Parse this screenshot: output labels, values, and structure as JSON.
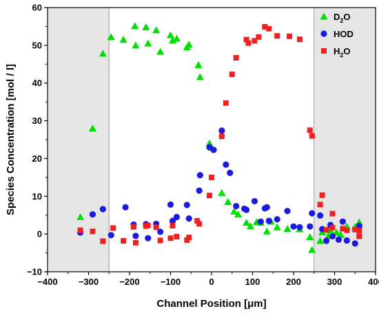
{
  "chart_data": {
    "type": "scatter",
    "xlabel": "Channel Position [μm]",
    "ylabel": "Species Concentration [mol / l]",
    "xlim": [
      -400,
      400
    ],
    "ylim": [
      -10,
      60
    ],
    "x_ticks": [
      -400,
      -300,
      -200,
      -100,
      0,
      100,
      200,
      300,
      400
    ],
    "y_ticks": [
      -10,
      0,
      10,
      20,
      30,
      40,
      50,
      60
    ],
    "grid": false,
    "legend_position": "top-right",
    "shaded_regions": [
      [
        -400,
        -250
      ],
      [
        250,
        400
      ]
    ],
    "series": [
      {
        "name": "D2O",
        "display_name": {
          "main": "D",
          "sub": "2",
          "tail": "O"
        },
        "marker": "triangle",
        "color": "#00e000",
        "points": [
          [
            -320,
            4.5
          ],
          [
            -290,
            28
          ],
          [
            -265,
            47.8
          ],
          [
            -245,
            52.2
          ],
          [
            -215,
            51.5
          ],
          [
            -187,
            55.1
          ],
          [
            -185,
            50.0
          ],
          [
            -160,
            54.8
          ],
          [
            -155,
            50.5
          ],
          [
            -135,
            54.0
          ],
          [
            -125,
            48.3
          ],
          [
            -100,
            52.7
          ],
          [
            -95,
            51.3
          ],
          [
            -85,
            51.8
          ],
          [
            -60,
            49.5
          ],
          [
            -55,
            50.2
          ],
          [
            -32,
            44.8
          ],
          [
            -28,
            41.6
          ],
          [
            -5,
            24.0
          ],
          [
            0,
            22.9
          ],
          [
            25,
            10.9
          ],
          [
            40,
            8.5
          ],
          [
            55,
            6.0
          ],
          [
            65,
            5.2
          ],
          [
            85,
            3.0
          ],
          [
            95,
            2.1
          ],
          [
            110,
            3.2
          ],
          [
            120,
            3.0
          ],
          [
            135,
            0.7
          ],
          [
            145,
            3.3
          ],
          [
            160,
            1.8
          ],
          [
            185,
            1.4
          ],
          [
            215,
            1.3
          ],
          [
            240,
            -0.8
          ],
          [
            245,
            -4.2
          ],
          [
            265,
            -1.8
          ],
          [
            270,
            0.5
          ],
          [
            285,
            -0.5
          ],
          [
            290,
            1.0
          ],
          [
            305,
            0.4
          ],
          [
            315,
            -0.2
          ],
          [
            330,
            2.0
          ],
          [
            350,
            1.9
          ],
          [
            360,
            3.1
          ],
          [
            360,
            2.1
          ]
        ]
      },
      {
        "name": "HOD",
        "marker": "circle",
        "color": "#1a1ae0",
        "points": [
          [
            -320,
            0.4
          ],
          [
            -290,
            5.2
          ],
          [
            -265,
            6.6
          ],
          [
            -245,
            -0.3
          ],
          [
            -210,
            7.1
          ],
          [
            -190,
            2.5
          ],
          [
            -185,
            -0.5
          ],
          [
            -160,
            2.6
          ],
          [
            -155,
            -1.1
          ],
          [
            -135,
            2.7
          ],
          [
            -125,
            0.6
          ],
          [
            -100,
            7.8
          ],
          [
            -95,
            3.5
          ],
          [
            -85,
            4.5
          ],
          [
            -60,
            7.7
          ],
          [
            -55,
            4.1
          ],
          [
            -30,
            11.5
          ],
          [
            -28,
            15.6
          ],
          [
            -5,
            23.0
          ],
          [
            5,
            22.3
          ],
          [
            25,
            27.4
          ],
          [
            35,
            18.4
          ],
          [
            45,
            16.2
          ],
          [
            60,
            7.4
          ],
          [
            80,
            6.7
          ],
          [
            85,
            6.4
          ],
          [
            105,
            8.7
          ],
          [
            120,
            3.3
          ],
          [
            130,
            6.8
          ],
          [
            135,
            7.1
          ],
          [
            140,
            3.5
          ],
          [
            160,
            3.9
          ],
          [
            185,
            6.1
          ],
          [
            200,
            2.0
          ],
          [
            215,
            1.8
          ],
          [
            240,
            2.0
          ],
          [
            245,
            5.5
          ],
          [
            265,
            4.9
          ],
          [
            270,
            1.3
          ],
          [
            280,
            -1.8
          ],
          [
            290,
            2.4
          ],
          [
            295,
            -0.6
          ],
          [
            310,
            -1.5
          ],
          [
            320,
            3.3
          ],
          [
            330,
            -1.7
          ],
          [
            350,
            -2.5
          ],
          [
            360,
            2.1
          ]
        ]
      },
      {
        "name": "H2O",
        "display_name": {
          "main": "H",
          "sub": "2",
          "tail": "O"
        },
        "marker": "square",
        "color": "#f02020",
        "points": [
          [
            -320,
            1.0
          ],
          [
            -290,
            0.7
          ],
          [
            -265,
            -1.9
          ],
          [
            -240,
            1.6
          ],
          [
            -215,
            -1.8
          ],
          [
            -190,
            1.9
          ],
          [
            -185,
            -2.3
          ],
          [
            -160,
            2.1
          ],
          [
            -155,
            2.3
          ],
          [
            -135,
            1.8
          ],
          [
            -125,
            -1.7
          ],
          [
            -100,
            -1.1
          ],
          [
            -95,
            2.2
          ],
          [
            -85,
            -0.7
          ],
          [
            -60,
            -1.6
          ],
          [
            -55,
            -0.9
          ],
          [
            -35,
            3.5
          ],
          [
            -30,
            2.7
          ],
          [
            -5,
            10.2
          ],
          [
            0,
            15.0
          ],
          [
            25,
            25.9
          ],
          [
            35,
            34.7
          ],
          [
            50,
            42.3
          ],
          [
            60,
            46.7
          ],
          [
            85,
            51.5
          ],
          [
            90,
            50.6
          ],
          [
            105,
            51.2
          ],
          [
            115,
            52.2
          ],
          [
            130,
            54.9
          ],
          [
            140,
            54.4
          ],
          [
            160,
            52.5
          ],
          [
            190,
            52.4
          ],
          [
            215,
            51.6
          ],
          [
            240,
            27.5
          ],
          [
            245,
            26.0
          ],
          [
            265,
            7.8
          ],
          [
            270,
            10.3
          ],
          [
            280,
            1.1
          ],
          [
            295,
            5.4
          ],
          [
            295,
            1.7
          ],
          [
            320,
            1.4
          ],
          [
            330,
            1.0
          ],
          [
            350,
            1.2
          ],
          [
            360,
            -0.6
          ],
          [
            360,
            0.9
          ]
        ]
      }
    ]
  }
}
